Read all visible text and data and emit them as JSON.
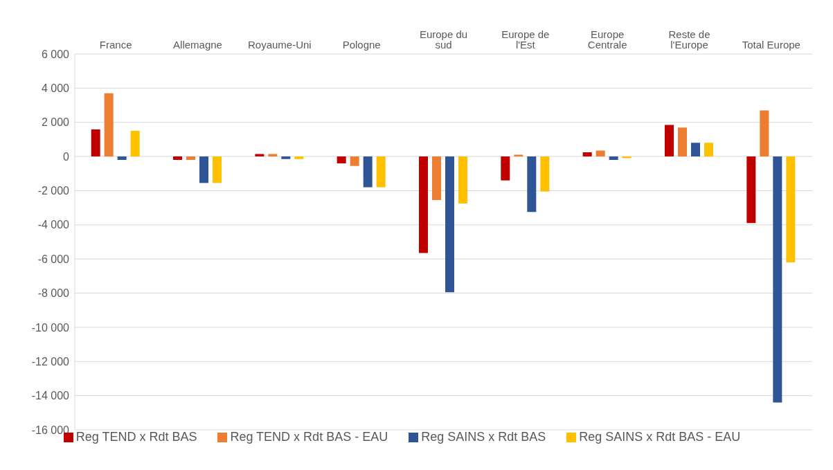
{
  "chart_data": {
    "type": "bar",
    "categories": [
      "France",
      "Allemagne",
      "Royaume-Uni",
      "Pologne",
      "Europe du sud",
      "Europe de l'Est",
      "Europe Centrale",
      "Reste de l'Europe",
      "Total Europe"
    ],
    "series": [
      {
        "name": "Reg TEND x Rdt BAS",
        "color": "#c00000",
        "values": [
          1580,
          -200,
          150,
          -400,
          -5650,
          -1400,
          250,
          1850,
          -3900
        ]
      },
      {
        "name": "Reg TEND x Rdt BAS - EAU",
        "color": "#ed7d31",
        "values": [
          3700,
          -200,
          150,
          -550,
          -2550,
          100,
          350,
          1700,
          2700
        ]
      },
      {
        "name": "Reg SAINS x Rdt BAS",
        "color": "#2f5597",
        "values": [
          -200,
          -1550,
          -150,
          -1800,
          -7950,
          -3250,
          -200,
          800,
          -14400
        ]
      },
      {
        "name": "Reg SAINS x Rdt BAS - EAU",
        "color": "#ffc000",
        "values": [
          1500,
          -1550,
          -150,
          -1800,
          -2750,
          -2050,
          -100,
          800,
          -6200
        ]
      }
    ],
    "ylim": [
      -16000,
      6000
    ],
    "yticks": [
      {
        "value": -16000,
        "label": "-16 000"
      },
      {
        "value": -14000,
        "label": "-14 000"
      },
      {
        "value": -12000,
        "label": "-12 000"
      },
      {
        "value": -10000,
        "label": "-10 000"
      },
      {
        "value": -8000,
        "label": "-8 000"
      },
      {
        "value": -6000,
        "label": "-6 000"
      },
      {
        "value": -4000,
        "label": "-4 000"
      },
      {
        "value": -2000,
        "label": "-2 000"
      },
      {
        "value": 0,
        "label": "0"
      },
      {
        "value": 2000,
        "label": "2 000"
      },
      {
        "value": 4000,
        "label": "4 000"
      },
      {
        "value": 6000,
        "label": "6 000"
      }
    ],
    "grid": "y",
    "legend": "bottom"
  }
}
